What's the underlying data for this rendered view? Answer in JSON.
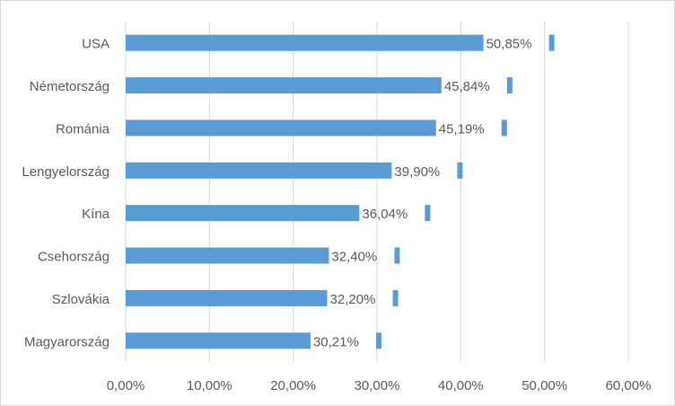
{
  "chart_data": {
    "type": "bar",
    "orientation": "horizontal",
    "title": "",
    "xlabel": "",
    "ylabel": "",
    "categories": [
      "USA",
      "Németország",
      "Románia",
      "Lengyelország",
      "Kína",
      "Csehország",
      "Szlovákia",
      "Magyarország"
    ],
    "values": [
      50.85,
      45.84,
      45.19,
      39.9,
      36.04,
      32.4,
      32.2,
      30.21
    ],
    "data_labels": [
      "50,85%",
      "45,84%",
      "45,19%",
      "39,90%",
      "36,04%",
      "32,40%",
      "32,20%",
      "30,21%"
    ],
    "xlim": [
      0,
      60
    ],
    "x_ticks": [
      "0,00%",
      "10,00%",
      "20,00%",
      "30,00%",
      "40,00%",
      "50,00%",
      "60,00%"
    ],
    "grid": "vertical",
    "legend": "none",
    "colors": {
      "bar": "#5b9bd5",
      "grid": "#d9d9d9",
      "text": "#595959"
    }
  }
}
